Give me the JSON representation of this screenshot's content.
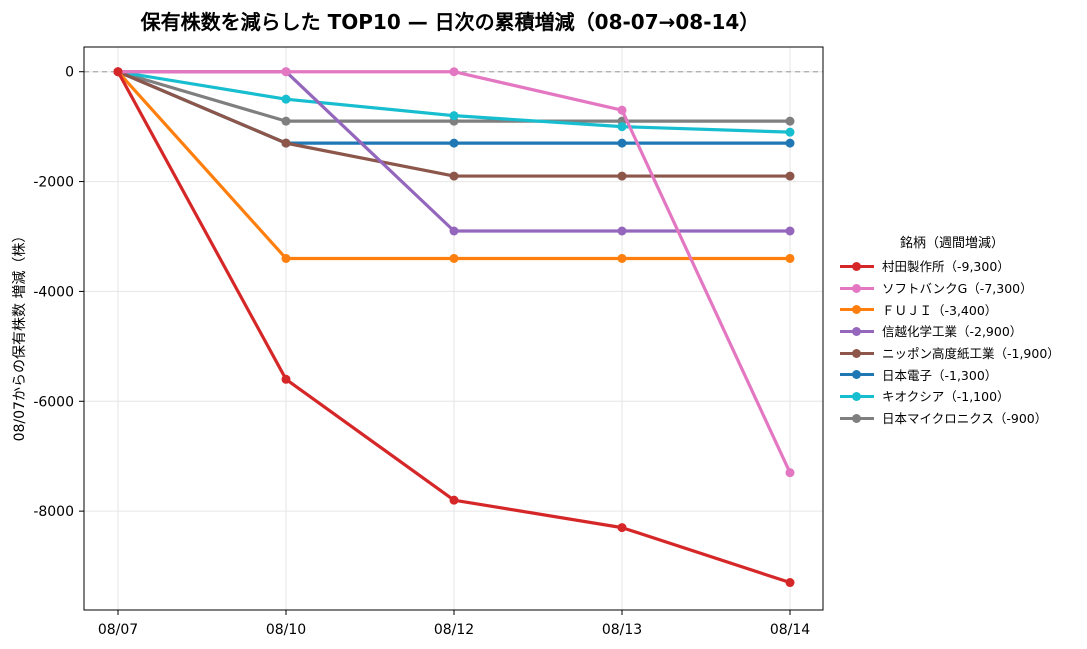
{
  "chart_data": {
    "type": "line",
    "title": "保有株数を減らした TOP10 — 日次の累積増減（08-07→08-14）",
    "xlabel": "",
    "ylabel": "08/07からの保有株数 増減（株）",
    "categories": [
      "08/07",
      "08/10",
      "08/12",
      "08/13",
      "08/14"
    ],
    "ylim": [
      -9800,
      450
    ],
    "yticks": [
      0,
      -2000,
      -4000,
      -6000,
      -8000
    ],
    "ytick_labels": [
      "0",
      "-2000",
      "-4000",
      "-6000",
      "-8000"
    ],
    "grid": true,
    "reference_line": 0,
    "legend_title": "銘柄（週間増減）",
    "legend_position": "right",
    "series": [
      {
        "name": "村田製作所（-9,300）",
        "color": "#d62728",
        "values": [
          0,
          -5600,
          -7800,
          -8300,
          -9300
        ]
      },
      {
        "name": "ソフトバンクG（-7,300）",
        "color": "#e377c2",
        "values": [
          0,
          0,
          0,
          -700,
          -7300
        ]
      },
      {
        "name": "ＦＵＪＩ（-3,400）",
        "color": "#ff7f0e",
        "values": [
          0,
          -3400,
          -3400,
          -3400,
          -3400
        ]
      },
      {
        "name": "信越化学工業（-2,900）",
        "color": "#9467bd",
        "values": [
          0,
          0,
          -2900,
          -2900,
          -2900
        ]
      },
      {
        "name": "ニッポン高度紙工業（-1,900）",
        "color": "#8c564b",
        "values": [
          0,
          -1300,
          -1900,
          -1900,
          -1900
        ]
      },
      {
        "name": "日本電子（-1,300）",
        "color": "#1f77b4",
        "values": [
          0,
          -1300,
          -1300,
          -1300,
          -1300
        ]
      },
      {
        "name": "キオクシア（-1,100）",
        "color": "#17becf",
        "values": [
          0,
          -500,
          -800,
          -1000,
          -1100
        ]
      },
      {
        "name": "日本マイクロニクス（-900）",
        "color": "#7f7f7f",
        "values": [
          0,
          -900,
          -900,
          -900,
          -900
        ]
      }
    ]
  }
}
